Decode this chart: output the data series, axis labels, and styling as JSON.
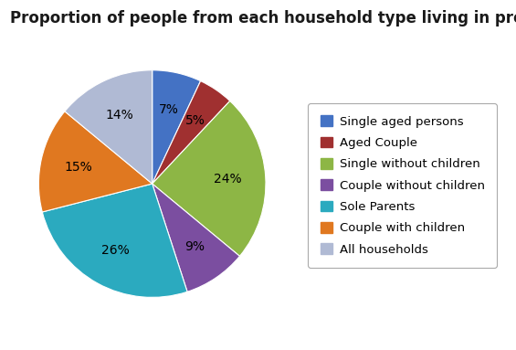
{
  "title": "Proportion of people from each household type living in proverty",
  "labels": [
    "Single aged persons",
    "Aged Couple",
    "Single without children",
    "Couple without children",
    "Sole Parents",
    "Couple with children",
    "All households"
  ],
  "values": [
    7,
    5,
    24,
    9,
    26,
    15,
    14
  ],
  "colors": [
    "#4472C4",
    "#A03030",
    "#8DB645",
    "#7B4EA0",
    "#2BAABF",
    "#E07820",
    "#B0BAD4"
  ],
  "pct_labels": [
    "7%",
    "5%",
    "24%",
    "9%",
    "26%",
    "15%",
    "14%"
  ],
  "title_fontsize": 12,
  "legend_fontsize": 9.5,
  "pct_fontsize": 10,
  "background_color": "#ffffff",
  "startangle": 90
}
